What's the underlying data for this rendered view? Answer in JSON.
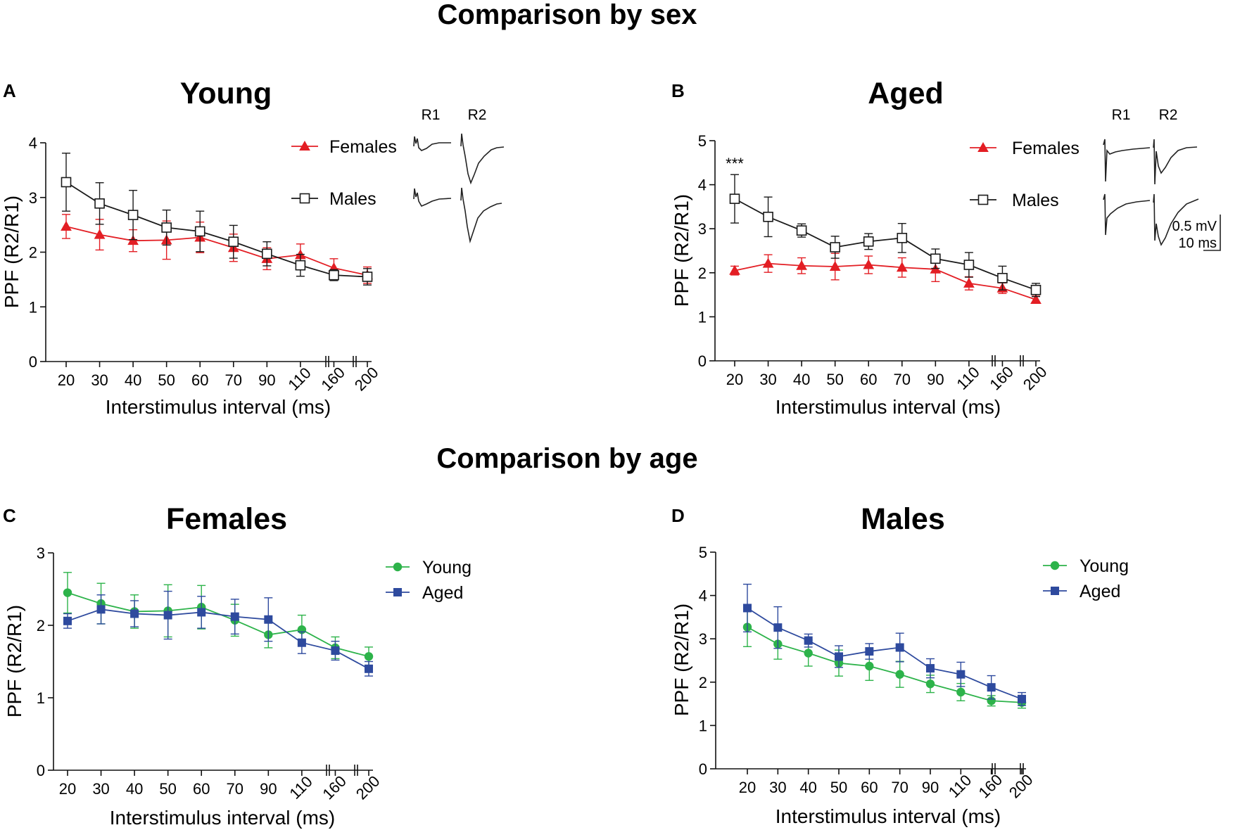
{
  "figure": {
    "section_titles": [
      "Comparison by sex",
      "Comparison by age"
    ],
    "traces": {
      "r1_label": "R1",
      "r2_label": "R2",
      "scale_voltage": "0.5 mV",
      "scale_time": "10 ms"
    },
    "significance_label": "***"
  },
  "chart_data": [
    {
      "type": "line",
      "panel": "A",
      "title": "Young",
      "xlabel": "Interstimulus interval (ms)",
      "ylabel": "PPF (R2/R1)",
      "x": [
        20,
        30,
        40,
        50,
        60,
        70,
        90,
        110,
        160,
        200
      ],
      "x_tick_labels": [
        "20",
        "30",
        "40",
        "50",
        "60",
        "70",
        "90",
        "110",
        "160",
        "200"
      ],
      "ylim": [
        0,
        4
      ],
      "y_ticks": [
        "0",
        "1",
        "2",
        "3",
        "4"
      ],
      "axis_breaks": true,
      "legend_position": "top-right",
      "series": [
        {
          "name": "Females",
          "color": "#e31e24",
          "marker": "triangle",
          "values": [
            2.47,
            2.32,
            2.21,
            2.22,
            2.27,
            2.08,
            1.88,
            1.95,
            1.71,
            1.58
          ],
          "errors": [
            0.22,
            0.28,
            0.2,
            0.35,
            0.28,
            0.25,
            0.2,
            0.2,
            0.17,
            0.15
          ]
        },
        {
          "name": "Males",
          "color": "#1a1a1a",
          "marker": "open-square",
          "values": [
            3.28,
            2.89,
            2.68,
            2.45,
            2.38,
            2.19,
            1.97,
            1.76,
            1.58,
            1.55
          ],
          "errors": [
            0.53,
            0.38,
            0.45,
            0.32,
            0.37,
            0.3,
            0.22,
            0.2,
            0.1,
            0.15
          ]
        }
      ]
    },
    {
      "type": "line",
      "panel": "B",
      "title": "Aged",
      "xlabel": "Interstimulus interval (ms)",
      "ylabel": "PPF (R2/R1)",
      "x": [
        20,
        30,
        40,
        50,
        60,
        70,
        90,
        110,
        160,
        200
      ],
      "x_tick_labels": [
        "20",
        "30",
        "40",
        "50",
        "60",
        "70",
        "90",
        "110",
        "160",
        "200"
      ],
      "ylim": [
        0,
        5
      ],
      "y_ticks": [
        "0",
        "1",
        "2",
        "3",
        "4",
        "5"
      ],
      "axis_breaks": true,
      "legend_position": "top-right",
      "annotation": {
        "text": "***",
        "x": 20
      },
      "series": [
        {
          "name": "Females",
          "color": "#e31e24",
          "marker": "triangle",
          "values": [
            2.05,
            2.21,
            2.16,
            2.14,
            2.18,
            2.12,
            2.08,
            1.76,
            1.65,
            1.39
          ],
          "errors": [
            0.1,
            0.2,
            0.18,
            0.3,
            0.2,
            0.22,
            0.28,
            0.15,
            0.12,
            0.08
          ]
        },
        {
          "name": "Males",
          "color": "#1a1a1a",
          "marker": "open-square",
          "values": [
            3.68,
            3.27,
            2.96,
            2.58,
            2.71,
            2.79,
            2.32,
            2.18,
            1.88,
            1.61
          ],
          "errors": [
            0.55,
            0.45,
            0.15,
            0.25,
            0.18,
            0.33,
            0.22,
            0.28,
            0.27,
            0.15
          ]
        }
      ]
    },
    {
      "type": "line",
      "panel": "C",
      "title": "Females",
      "xlabel": "Interstimulus interval (ms)",
      "ylabel": "PPF (R2/R1)",
      "x": [
        20,
        30,
        40,
        50,
        60,
        70,
        90,
        110,
        160,
        200
      ],
      "x_tick_labels": [
        "20",
        "30",
        "40",
        "50",
        "60",
        "70",
        "90",
        "110",
        "160",
        "200"
      ],
      "ylim": [
        0,
        3
      ],
      "y_ticks": [
        "0",
        "1",
        "2",
        "3"
      ],
      "axis_breaks": true,
      "legend_position": "top-right",
      "series": [
        {
          "name": "Young",
          "color": "#2db34a",
          "marker": "circle",
          "values": [
            2.45,
            2.3,
            2.19,
            2.2,
            2.25,
            2.07,
            1.87,
            1.94,
            1.69,
            1.57
          ],
          "errors": [
            0.28,
            0.28,
            0.23,
            0.36,
            0.3,
            0.22,
            0.18,
            0.2,
            0.15,
            0.13
          ]
        },
        {
          "name": "Aged",
          "color": "#2e4a9e",
          "marker": "square",
          "values": [
            2.06,
            2.22,
            2.16,
            2.14,
            2.18,
            2.12,
            2.08,
            1.76,
            1.65,
            1.4
          ],
          "errors": [
            0.1,
            0.2,
            0.18,
            0.33,
            0.22,
            0.24,
            0.3,
            0.15,
            0.13,
            0.1
          ]
        }
      ]
    },
    {
      "type": "line",
      "panel": "D",
      "title": "Males",
      "xlabel": "Interstimulus interval (ms)",
      "ylabel": "PPF (R2/R1)",
      "x": [
        20,
        30,
        40,
        50,
        60,
        70,
        90,
        110,
        160,
        200
      ],
      "x_tick_labels": [
        "20",
        "30",
        "40",
        "50",
        "60",
        "70",
        "90",
        "110",
        "160",
        "200"
      ],
      "ylim": [
        0,
        5
      ],
      "y_ticks": [
        "0",
        "1",
        "2",
        "3",
        "4",
        "5"
      ],
      "axis_breaks": true,
      "legend_position": "top-right",
      "series": [
        {
          "name": "Young",
          "color": "#2db34a",
          "marker": "circle",
          "values": [
            3.27,
            2.88,
            2.67,
            2.44,
            2.37,
            2.18,
            1.96,
            1.77,
            1.57,
            1.53
          ],
          "errors": [
            0.45,
            0.35,
            0.3,
            0.3,
            0.33,
            0.3,
            0.2,
            0.2,
            0.12,
            0.13
          ]
        },
        {
          "name": "Aged",
          "color": "#2e4a9e",
          "marker": "square",
          "values": [
            3.71,
            3.26,
            2.96,
            2.59,
            2.71,
            2.8,
            2.32,
            2.18,
            1.88,
            1.61
          ],
          "errors": [
            0.55,
            0.48,
            0.15,
            0.25,
            0.18,
            0.33,
            0.22,
            0.28,
            0.27,
            0.15
          ]
        }
      ]
    }
  ]
}
